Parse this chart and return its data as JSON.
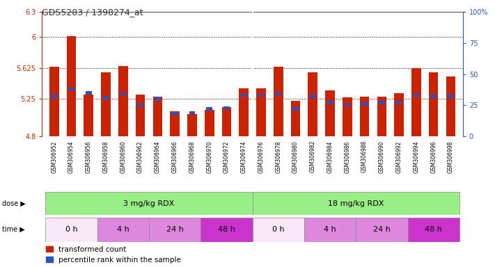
{
  "title": "GDS5283 / 1398274_at",
  "samples": [
    "GSM306952",
    "GSM306954",
    "GSM306956",
    "GSM306958",
    "GSM306960",
    "GSM306962",
    "GSM306964",
    "GSM306966",
    "GSM306968",
    "GSM306970",
    "GSM306972",
    "GSM306974",
    "GSM306976",
    "GSM306978",
    "GSM306980",
    "GSM306982",
    "GSM306984",
    "GSM306986",
    "GSM306988",
    "GSM306990",
    "GSM306992",
    "GSM306994",
    "GSM306996",
    "GSM306998"
  ],
  "red_values": [
    5.64,
    6.01,
    5.3,
    5.57,
    5.65,
    5.3,
    5.28,
    5.1,
    5.07,
    5.12,
    5.15,
    5.38,
    5.38,
    5.64,
    5.23,
    5.57,
    5.35,
    5.27,
    5.28,
    5.28,
    5.32,
    5.62,
    5.57,
    5.52
  ],
  "blue_values": [
    32,
    38,
    35,
    31,
    34,
    25,
    30,
    18,
    19,
    22,
    23,
    33,
    33,
    34,
    22,
    32,
    27,
    25,
    26,
    27,
    27,
    33,
    32,
    32
  ],
  "ylim_left": [
    4.8,
    6.3
  ],
  "ylim_right": [
    0,
    100
  ],
  "yticks_left": [
    4.8,
    5.25,
    5.625,
    6.0,
    6.3
  ],
  "ytick_labels_left": [
    "4.8",
    "5.25",
    "5.625",
    "6",
    "6.3"
  ],
  "yticks_right": [
    0,
    25,
    50,
    75,
    100
  ],
  "ytick_labels_right": [
    "0",
    "25",
    "50",
    "75",
    "100%"
  ],
  "baseline": 4.8,
  "bar_color": "#cc2200",
  "blue_color": "#2255cc",
  "dose_labels": [
    "3 mg/kg RDX",
    "18 mg/kg RDX"
  ],
  "dose_color": "#99ee88",
  "time_labels": [
    "0 h",
    "4 h",
    "24 h",
    "48 h",
    "0 h",
    "4 h",
    "24 h",
    "48 h"
  ],
  "time_colors": [
    "#f8e8f8",
    "#dd88dd",
    "#dd88dd",
    "#cc33cc",
    "#f8e8f8",
    "#dd88dd",
    "#dd88dd",
    "#cc33cc"
  ],
  "legend_red": "transformed count",
  "legend_blue": "percentile rank within the sample",
  "grid_dotted_at": [
    5.25,
    5.625,
    6.0
  ],
  "bar_width": 0.55
}
